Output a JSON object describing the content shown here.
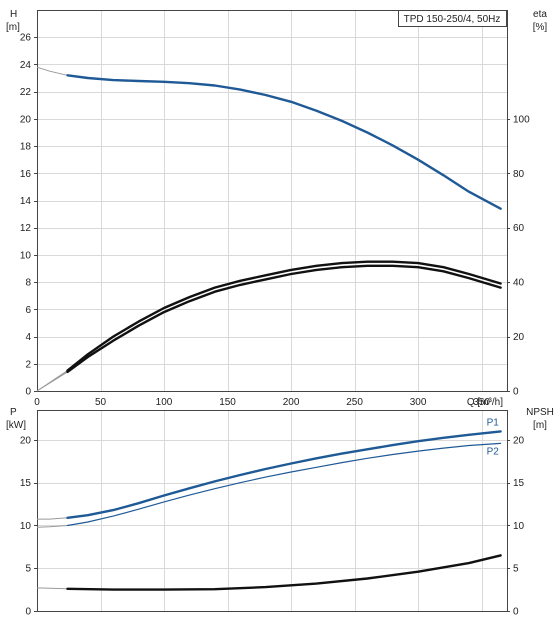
{
  "chart_data": [
    {
      "type": "line",
      "panel": "top",
      "title": "TPD 150-250/4, 50Hz",
      "xlabel": "Q [m³/h]",
      "ylabel_left": [
        "H",
        "[m]"
      ],
      "ylabel_right": [
        "eta",
        "[%]"
      ],
      "xlim": [
        0,
        370
      ],
      "ylim_left": [
        0,
        28
      ],
      "ylim_right": [
        0,
        140
      ],
      "xticks": [
        0,
        50,
        100,
        150,
        200,
        250,
        300,
        350
      ],
      "yticks_left": [
        0,
        2,
        4,
        6,
        8,
        10,
        12,
        14,
        16,
        18,
        20,
        22,
        24,
        26
      ],
      "yticks_right": [
        0,
        20,
        40,
        60,
        80,
        100
      ],
      "grid": true,
      "series": [
        {
          "axis": "left",
          "color": "#1f5a96",
          "extension_color": "#999999",
          "x": [
            0,
            10,
            24,
            40,
            60,
            80,
            100,
            120,
            140,
            160,
            180,
            200,
            220,
            240,
            260,
            280,
            300,
            320,
            340,
            365
          ],
          "y": [
            23.8,
            23.5,
            23.2,
            23.0,
            22.85,
            22.78,
            22.72,
            22.62,
            22.45,
            22.15,
            21.75,
            21.25,
            20.6,
            19.85,
            19.0,
            18.05,
            17.0,
            15.85,
            14.65,
            13.4
          ],
          "solid_from": 24
        },
        {
          "axis": "right",
          "color": "#111111",
          "extension_color": "#999999",
          "x": [
            0,
            24,
            40,
            60,
            80,
            100,
            120,
            140,
            160,
            180,
            200,
            220,
            240,
            260,
            280,
            300,
            320,
            340,
            365
          ],
          "y": [
            0,
            7.5,
            13.5,
            20.0,
            25.5,
            30.5,
            34.5,
            38.0,
            40.5,
            42.5,
            44.5,
            46.0,
            47.0,
            47.5,
            47.5,
            47.0,
            45.5,
            43.0,
            39.5
          ],
          "solid_from": 24
        },
        {
          "axis": "right",
          "color": "#111111",
          "extension_color": "#999999",
          "x": [
            0,
            24,
            40,
            60,
            80,
            100,
            120,
            140,
            160,
            180,
            200,
            220,
            240,
            260,
            280,
            300,
            320,
            340,
            365
          ],
          "y": [
            0,
            7.0,
            12.5,
            18.5,
            24.0,
            29.0,
            33.0,
            36.5,
            39.0,
            41.0,
            43.0,
            44.5,
            45.5,
            46.0,
            46.0,
            45.5,
            44.0,
            41.5,
            38.0
          ],
          "solid_from": 24
        }
      ]
    },
    {
      "type": "line",
      "panel": "bottom",
      "ylabel_left": [
        "P",
        "[kW]"
      ],
      "ylabel_right": [
        "NPSH",
        "[m]"
      ],
      "xlim": [
        0,
        370
      ],
      "ylim_left": [
        0,
        23.5
      ],
      "ylim_right": [
        0,
        23.5
      ],
      "xticks": [
        0,
        50,
        100,
        150,
        200,
        250,
        300,
        350
      ],
      "yticks_left": [
        0,
        5,
        10,
        15,
        20
      ],
      "yticks_right": [
        0,
        5,
        10,
        15,
        20
      ],
      "grid": true,
      "series": [
        {
          "name": "P1",
          "axis": "left",
          "color": "#1f5a96",
          "extension_color": "#999999",
          "x": [
            0,
            10,
            24,
            40,
            60,
            80,
            100,
            120,
            140,
            160,
            180,
            200,
            220,
            240,
            260,
            280,
            300,
            320,
            340,
            365
          ],
          "y": [
            10.75,
            10.75,
            10.9,
            11.2,
            11.8,
            12.6,
            13.5,
            14.35,
            15.15,
            15.9,
            16.6,
            17.25,
            17.85,
            18.4,
            18.9,
            19.4,
            19.85,
            20.25,
            20.6,
            21.0
          ],
          "solid_from": 24,
          "thick": true
        },
        {
          "name": "P2",
          "axis": "left",
          "color": "#1f5a96",
          "extension_color": "#999999",
          "x": [
            0,
            10,
            24,
            40,
            60,
            80,
            100,
            120,
            140,
            160,
            180,
            200,
            220,
            240,
            260,
            280,
            300,
            320,
            340,
            365
          ],
          "y": [
            9.8,
            9.85,
            10.0,
            10.4,
            11.1,
            11.9,
            12.75,
            13.55,
            14.3,
            15.0,
            15.65,
            16.25,
            16.8,
            17.35,
            17.85,
            18.3,
            18.7,
            19.05,
            19.35,
            19.6
          ],
          "solid_from": 24,
          "thick": false
        },
        {
          "axis": "right",
          "color": "#111111",
          "extension_color": "#999999",
          "x": [
            0,
            24,
            60,
            100,
            140,
            180,
            220,
            260,
            300,
            340,
            365
          ],
          "y": [
            2.7,
            2.6,
            2.5,
            2.5,
            2.55,
            2.8,
            3.2,
            3.8,
            4.6,
            5.6,
            6.5
          ],
          "solid_from": 24,
          "thick": true
        }
      ]
    }
  ]
}
